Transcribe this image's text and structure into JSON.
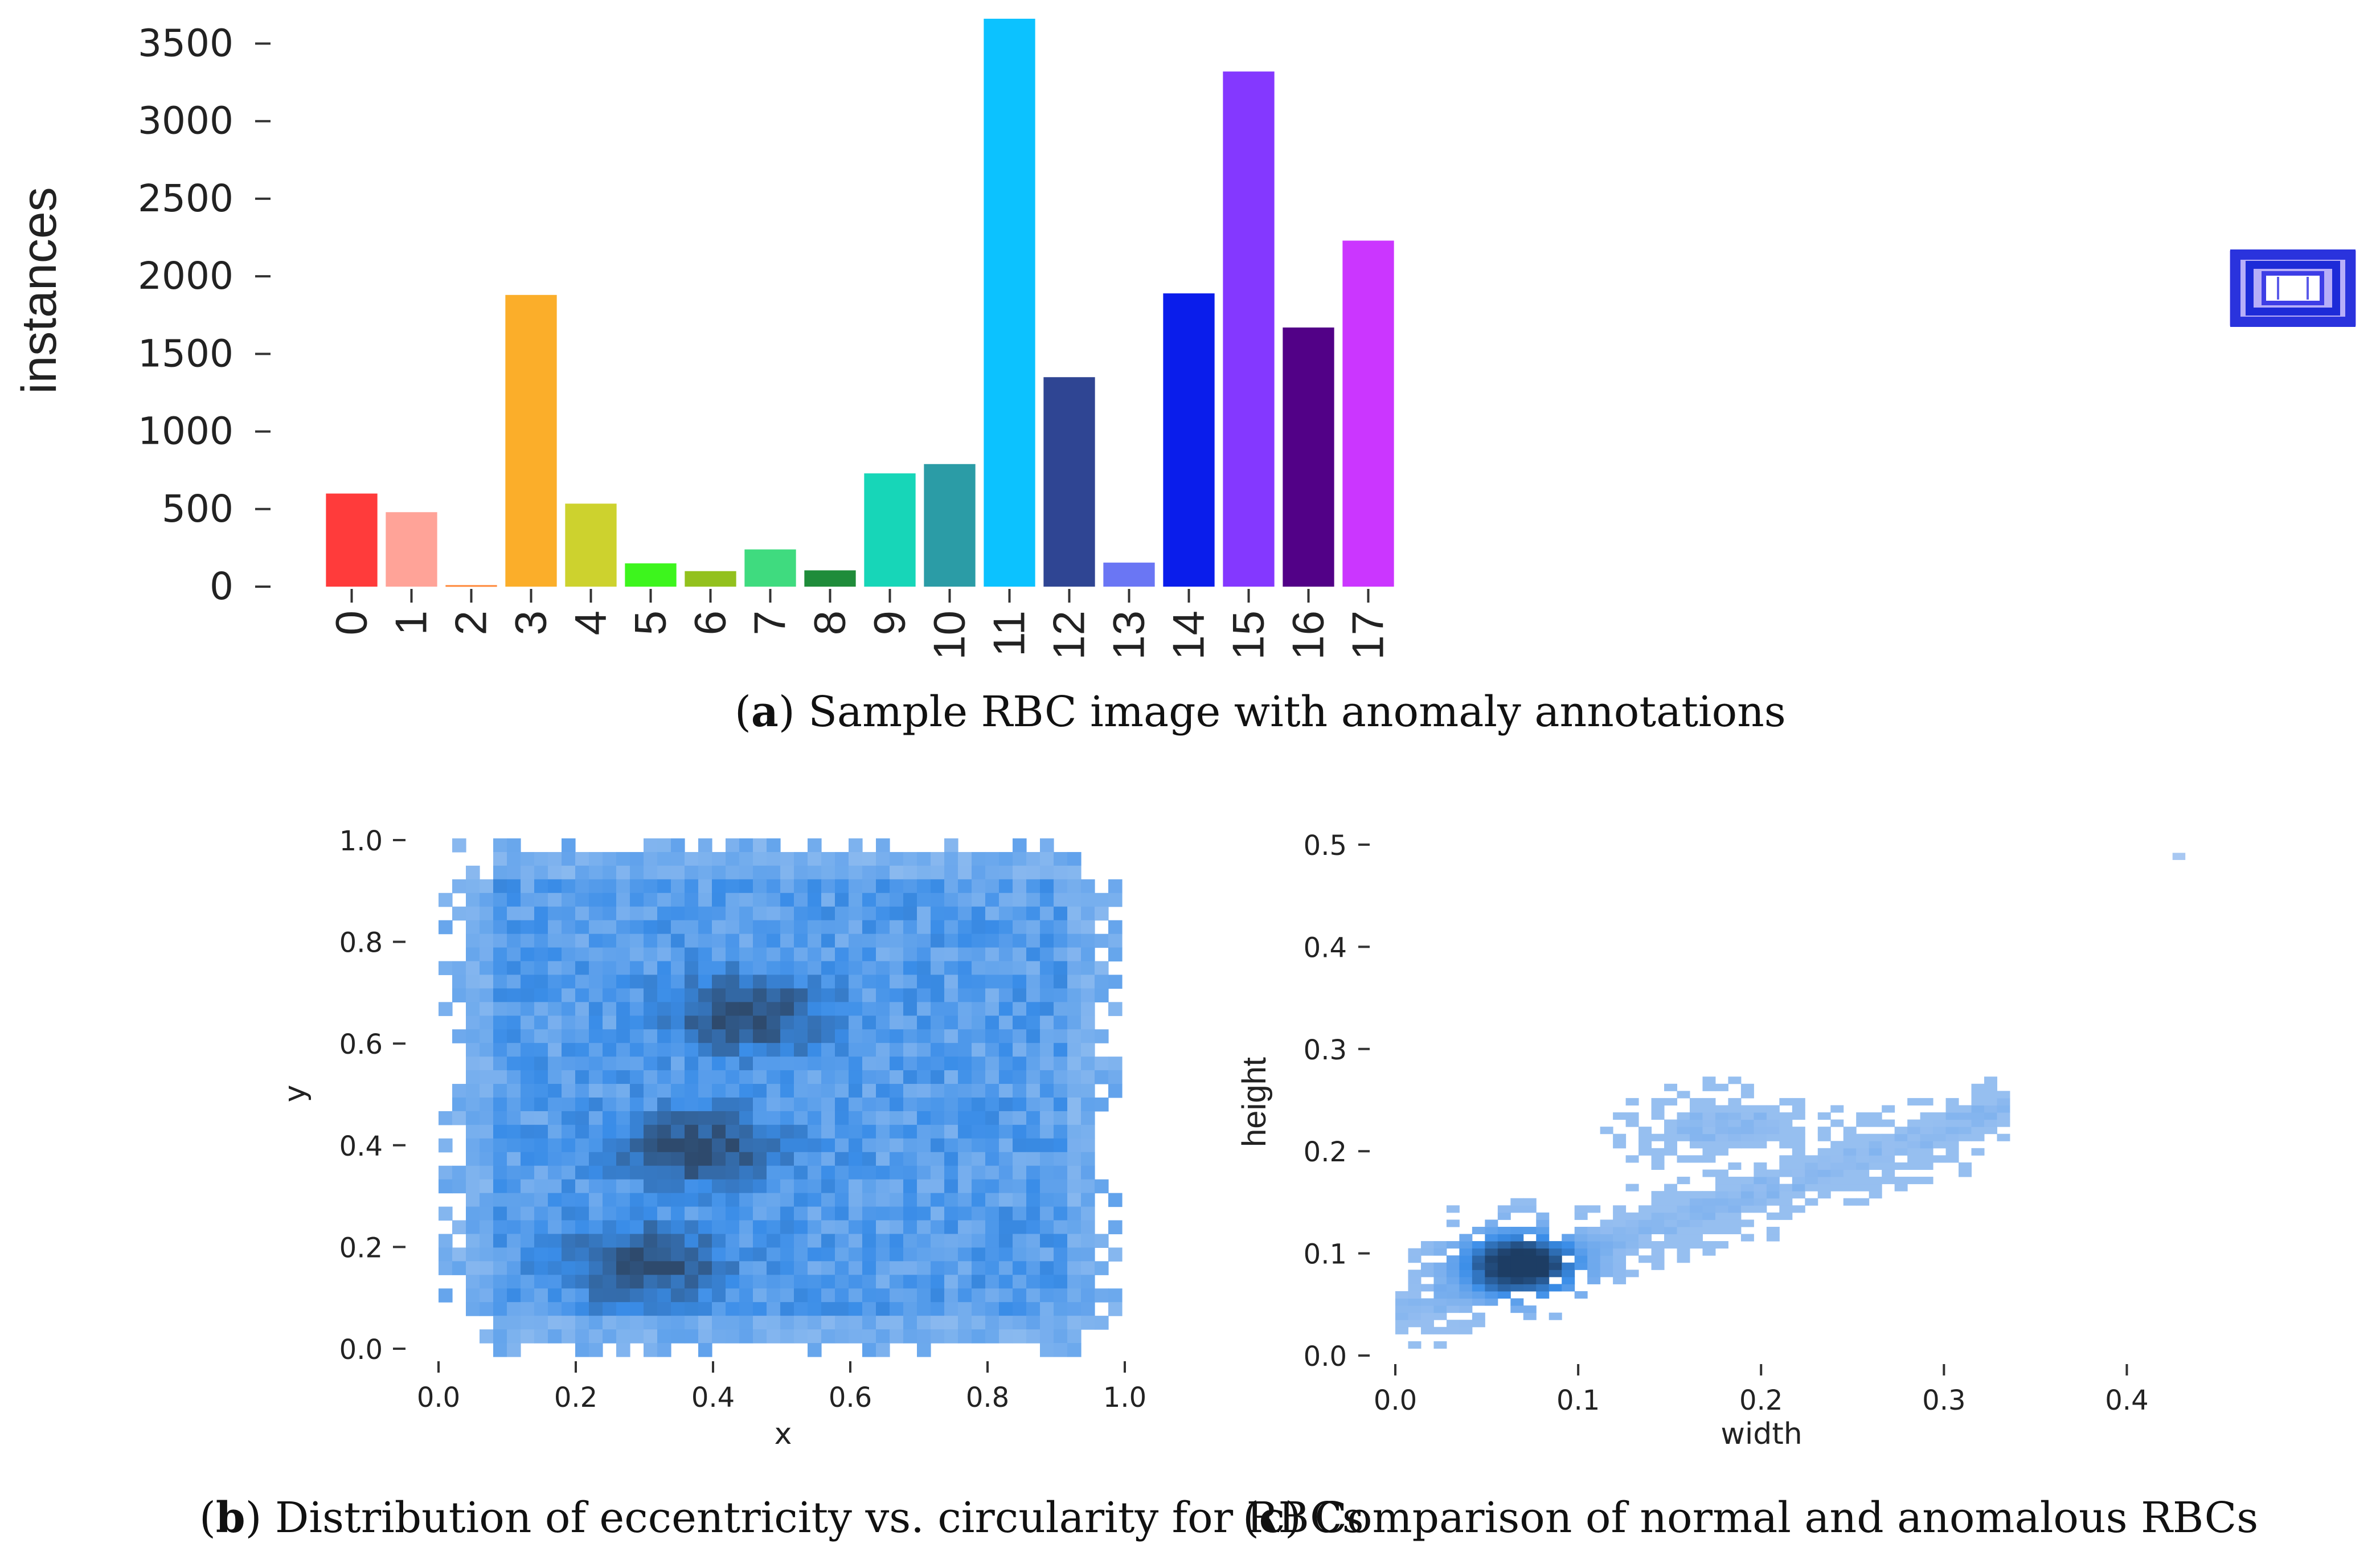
{
  "chart_data": [
    {
      "type": "bar",
      "ylabel": "instances",
      "xlabel": "",
      "ylim": [
        0,
        3700
      ],
      "yticks": [
        0,
        500,
        1000,
        1500,
        2000,
        2500,
        3000,
        3500
      ],
      "categories": [
        "0",
        "1",
        "2",
        "3",
        "4",
        "5",
        "6",
        "7",
        "8",
        "9",
        "10",
        "11",
        "12",
        "13",
        "14",
        "15",
        "16",
        "17"
      ],
      "values": [
        600,
        480,
        10,
        1880,
        535,
        150,
        100,
        240,
        105,
        730,
        790,
        3660,
        1350,
        155,
        1890,
        3320,
        1670,
        2230
      ],
      "colors": [
        "#ff3b3b",
        "#ffa398",
        "#ff8a3c",
        "#fbae2a",
        "#cdd22e",
        "#3df51d",
        "#93c11e",
        "#3fdb7f",
        "#1f8c3a",
        "#17d6b8",
        "#2b9ca6",
        "#0cc2ff",
        "#2f4593",
        "#6a76f4",
        "#0a1deb",
        "#8438ff",
        "#520187",
        "#cb36ff"
      ],
      "caption": {
        "label": "a",
        "text": ") Sample RBC image with anomaly annotations"
      }
    },
    {
      "type": "heatmap",
      "title": "",
      "xlabel": "x",
      "ylabel": "y",
      "xlim": [
        0,
        1
      ],
      "ylim": [
        0,
        1
      ],
      "xticks": [
        "0.0",
        "0.2",
        "0.4",
        "0.6",
        "0.8",
        "1.0"
      ],
      "yticks": [
        "0.0",
        "0.2",
        "0.4",
        "0.6",
        "0.8",
        "1.0"
      ],
      "bins": 50,
      "base_color": "#3a8de8",
      "dense_color": "#2e4a6d",
      "dense_regions": [
        {
          "x": 0.45,
          "y": 0.66,
          "label": "upper cluster"
        },
        {
          "x": 0.38,
          "y": 0.4,
          "label": "middle cluster"
        },
        {
          "x": 0.3,
          "y": 0.18,
          "label": "lower cluster"
        }
      ],
      "caption": {
        "label": "b",
        "text": ") Distribution of eccentricity vs. circularity for RBCs"
      }
    },
    {
      "type": "heatmap",
      "title": "",
      "xlabel": "width",
      "ylabel": "height",
      "xlim": [
        0,
        0.45
      ],
      "ylim": [
        0,
        0.5
      ],
      "xticks": [
        "0.0",
        "0.1",
        "0.2",
        "0.3",
        "0.4"
      ],
      "yticks": [
        "0.0",
        "0.1",
        "0.2",
        "0.3",
        "0.4",
        "0.5"
      ],
      "base_color": "#a8c8f2",
      "dense_color": "#1d3d64",
      "peak": {
        "x": 0.065,
        "y": 0.085
      },
      "outlier": {
        "x": 0.425,
        "y": 0.485
      },
      "caption": {
        "label": "c",
        "text": ") Comparison of normal and anomalous RBCs"
      }
    }
  ]
}
